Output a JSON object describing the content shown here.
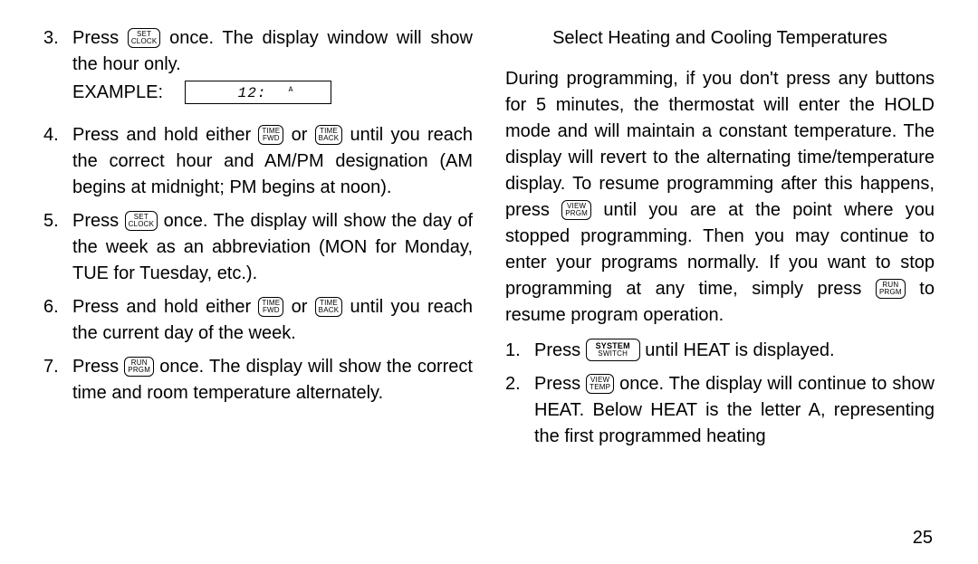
{
  "left": {
    "items": [
      {
        "num": "3.",
        "pre": "Press ",
        "btn1": {
          "l1": "SET",
          "l2": "CLOCK"
        },
        "post1": " once.  The display window will show the hour only.",
        "example_label": "EXAMPLE:",
        "lcd_time": "12:",
        "lcd_ampm": "A"
      },
      {
        "num": "4.",
        "pre": "Press and hold either ",
        "btn1": {
          "l1": "TIME",
          "l2": "FWD"
        },
        "mid": " or ",
        "btn2": {
          "l1": "TIME",
          "l2": "BACK"
        },
        "post1": " until you reach the correct hour and AM/PM designation (AM begins at midnight; PM begins at noon)."
      },
      {
        "num": "5.",
        "pre": "Press ",
        "btn1": {
          "l1": "SET",
          "l2": "CLOCK"
        },
        "post1": " once.  The display will show the day of the week as an abbreviation (MON for Monday, TUE for Tuesday, etc.)."
      },
      {
        "num": "6.",
        "pre": "Press and hold either ",
        "btn1": {
          "l1": "TIME",
          "l2": "FWD"
        },
        "mid": " or ",
        "btn2": {
          "l1": "TIME",
          "l2": "BACK"
        },
        "post1": " until you reach the current day of the week."
      },
      {
        "num": "7.",
        "pre": "Press ",
        "btn1": {
          "l1": "RUN",
          "l2": "PRGM"
        },
        "post1": " once.  The display will show the correct time and room temperature alternately."
      }
    ]
  },
  "right": {
    "heading": "Select Heating and Cooling Temperatures",
    "para_pre": "During programming, if you don't press any buttons for 5 minutes, the thermostat will enter the HOLD mode and will maintain a constant temperature.  The display will revert to the alternating time/temperature display.  To resume programming after this happens, press ",
    "btn_view_prgm": {
      "l1": "VIEW",
      "l2": "PRGM"
    },
    "para_mid": " until you are at the point where you stopped programming.  Then you may continue to enter your programs normally.  If you want to stop programming at any time, simply press ",
    "btn_run_prgm": {
      "l1": "RUN",
      "l2": "PRGM"
    },
    "para_post": " to resume program operation.",
    "items": [
      {
        "num": "1.",
        "pre": "Press ",
        "btn1": {
          "l1": "SYSTEM",
          "l2": "SWITCH",
          "wide": true
        },
        "post1": " until HEAT is displayed."
      },
      {
        "num": "2.",
        "pre": "Press ",
        "btn1": {
          "l1": "VIEW",
          "l2": "TEMP"
        },
        "post1": " once.  The display will continue to show HEAT.  Below HEAT is the letter A, representing the first programmed heating"
      }
    ]
  },
  "page_number": "25"
}
